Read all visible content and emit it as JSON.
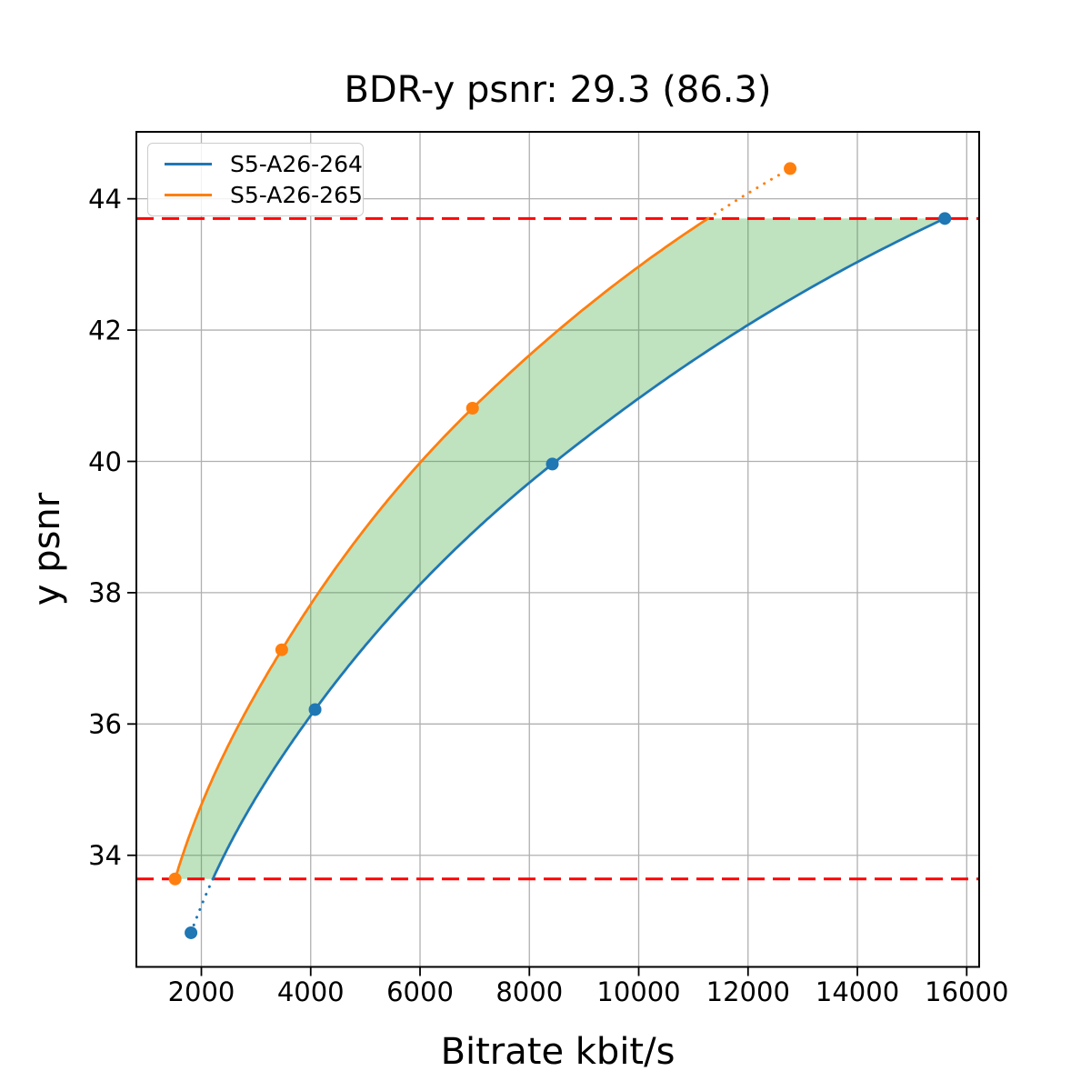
{
  "title": "BDR-y psnr: 29.3 (86.3)",
  "legend": {
    "items": [
      {
        "label": "S5-A26-264",
        "color": "#1f77b4"
      },
      {
        "label": "S5-A26-265",
        "color": "#ff7f0e"
      }
    ]
  },
  "chart_data": {
    "type": "line",
    "title": "BDR-y psnr: 29.3 (86.3)",
    "xlabel": "Bitrate kbit/s",
    "ylabel": "y psnr",
    "bdr_value": "29.3",
    "bdr_secondary_value": "86.3",
    "xlim": [
      811,
      16228
    ],
    "ylim": [
      32.3,
      45.02
    ],
    "xticks": [
      2000,
      4000,
      6000,
      8000,
      10000,
      12000,
      14000,
      16000
    ],
    "xtick_labels": [
      "2000",
      "4000",
      "6000",
      "8000",
      "10000",
      "12000",
      "14000",
      "16000"
    ],
    "yticks": [
      34,
      36,
      38,
      40,
      42,
      44
    ],
    "ytick_labels": [
      "34",
      "36",
      "38",
      "40",
      "42",
      "44"
    ],
    "grid": true,
    "grid_color": "#b0b0b0",
    "background": "#ffffff",
    "legend_position": "upper left",
    "interpolation": "monotone-cubic-in-log-bitrate",
    "series": [
      {
        "name": "S5-A26-264",
        "color": "#1f77b4",
        "marker": "circle",
        "points": [
          [
            1810,
            32.82
          ],
          [
            4080,
            36.22
          ],
          [
            8420,
            39.96
          ],
          [
            15600,
            43.7
          ]
        ],
        "dotted_where": "psnr below 33.64"
      },
      {
        "name": "S5-A26-265",
        "color": "#ff7f0e",
        "marker": "circle",
        "points": [
          [
            1520,
            33.64
          ],
          [
            3470,
            37.13
          ],
          [
            6960,
            40.81
          ],
          [
            12770,
            44.46
          ]
        ],
        "dotted_where": "psnr above 43.70"
      }
    ],
    "hlines": [
      {
        "y": 43.7,
        "color": "#ff0000",
        "style": "dashed"
      },
      {
        "y": 33.64,
        "color": "#ff0000",
        "style": "dashed"
      }
    ],
    "fill_between": {
      "color": "#2ca02c",
      "opacity": 0.3,
      "psnr_range": [
        33.64,
        43.7
      ],
      "description": "shaded overlap area between the two rate-distortion curves"
    }
  }
}
